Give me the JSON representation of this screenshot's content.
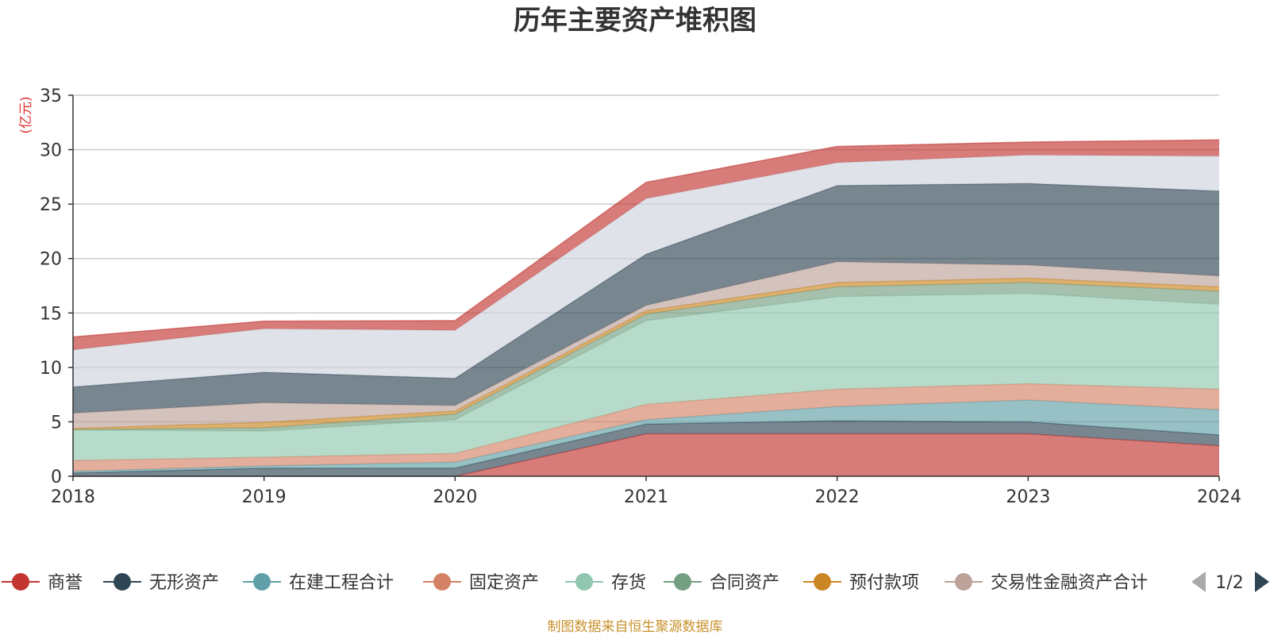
{
  "chart_data": {
    "type": "area",
    "stacked": true,
    "title": "历年主要资产堆积图",
    "unit_label": "(亿元)",
    "x": [
      "2018",
      "2019",
      "2020",
      "2021",
      "2022",
      "2023",
      "2024"
    ],
    "ylim": [
      0,
      35
    ],
    "yticks": [
      0,
      5,
      10,
      15,
      20,
      25,
      30,
      35
    ],
    "grid": true,
    "series": [
      {
        "name": "商誉",
        "color": "#c23531",
        "values": [
          0,
          0,
          0,
          3.9,
          3.9,
          3.9,
          2.8
        ]
      },
      {
        "name": "无形资产",
        "color": "#2f4554",
        "values": [
          0.3,
          0.75,
          0.75,
          0.9,
          1.2,
          1.1,
          1.0
        ]
      },
      {
        "name": "在建工程合计",
        "color": "#61a0a8",
        "values": [
          0.15,
          0.2,
          0.55,
          0.4,
          1.3,
          2.0,
          2.3
        ]
      },
      {
        "name": "固定资产",
        "color": "#d48265",
        "values": [
          1.0,
          0.8,
          0.8,
          1.4,
          1.6,
          1.5,
          1.9
        ]
      },
      {
        "name": "存货",
        "color": "#91c7ae",
        "values": [
          2.8,
          2.4,
          3.1,
          7.7,
          8.5,
          8.3,
          7.8
        ]
      },
      {
        "name": "合同资产",
        "color": "#749f83",
        "values": [
          0.05,
          0.3,
          0.5,
          0.6,
          0.9,
          1.0,
          1.2
        ]
      },
      {
        "name": "预付款项",
        "color": "#ca8622",
        "values": [
          0.1,
          0.5,
          0.3,
          0.3,
          0.4,
          0.4,
          0.4
        ]
      },
      {
        "name": "交易性金融资产合计",
        "color": "#bda29a",
        "values": [
          1.4,
          1.8,
          0.5,
          0.5,
          1.9,
          1.2,
          1.0
        ]
      },
      {
        "name": "",
        "color": "#2f4554",
        "values": [
          2.4,
          2.8,
          2.5,
          4.7,
          7.0,
          7.5,
          7.8
        ]
      },
      {
        "name": "",
        "color": "#ced4dd",
        "values": [
          3.4,
          4.0,
          4.4,
          5.1,
          2.1,
          2.6,
          3.2
        ]
      },
      {
        "name": "",
        "color": "#c23531",
        "values": [
          1.2,
          0.7,
          0.9,
          1.5,
          1.5,
          1.2,
          1.5
        ]
      }
    ],
    "legend": {
      "placement": "bottom",
      "visible_series": 8,
      "page_label": "1/2"
    },
    "source": "制图数据来自恒生聚源数据库"
  }
}
